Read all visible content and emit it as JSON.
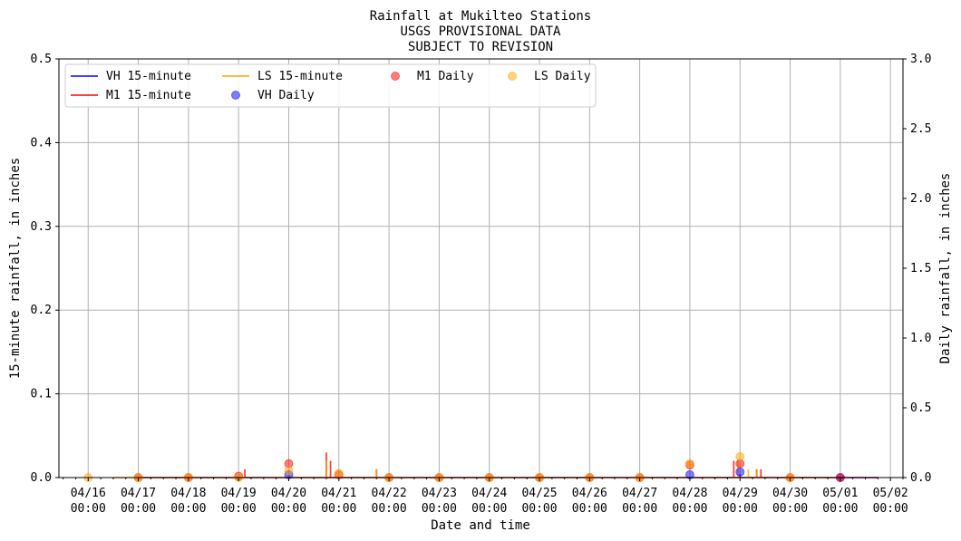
{
  "chart_data": {
    "type": "line",
    "title": [
      "Rainfall at Mukilteo Stations",
      "USGS PROVISIONAL DATA",
      "SUBJECT TO REVISION"
    ],
    "xlabel": "Date and time",
    "ylabel_left": "15-minute rainfall, in inches",
    "ylabel_right": "Daily rainfall, in inches",
    "ylim_left": [
      0,
      0.5
    ],
    "ylim_right": [
      0,
      3.0
    ],
    "yticks_left": [
      "0.0",
      "0.1",
      "0.2",
      "0.3",
      "0.4",
      "0.5"
    ],
    "yticks_right": [
      "0.0",
      "0.5",
      "1.0",
      "1.5",
      "2.0",
      "2.5",
      "3.0"
    ],
    "xticks": [
      [
        "04/16",
        "00:00"
      ],
      [
        "04/17",
        "00:00"
      ],
      [
        "04/18",
        "00:00"
      ],
      [
        "04/19",
        "00:00"
      ],
      [
        "04/20",
        "00:00"
      ],
      [
        "04/21",
        "00:00"
      ],
      [
        "04/22",
        "00:00"
      ],
      [
        "04/23",
        "00:00"
      ],
      [
        "04/24",
        "00:00"
      ],
      [
        "04/25",
        "00:00"
      ],
      [
        "04/26",
        "00:00"
      ],
      [
        "04/27",
        "00:00"
      ],
      [
        "04/28",
        "00:00"
      ],
      [
        "04/29",
        "00:00"
      ],
      [
        "04/30",
        "00:00"
      ],
      [
        "05/01",
        "00:00"
      ],
      [
        "05/02",
        "00:00"
      ]
    ],
    "xrange": [
      "04/15 10:00",
      "05/02 06:00"
    ],
    "grid": true,
    "legend_position": "top-left",
    "series": [
      {
        "name": "VH 15-minute",
        "kind": "line",
        "color": "#0000ff",
        "range": [
          "04/17 00:00",
          "05/01 18:00"
        ],
        "spikes": [
          [
            "04/20 00:00",
            0.003
          ],
          [
            "04/29 00:00",
            0.004
          ]
        ]
      },
      {
        "name": "M1 15-minute",
        "kind": "line",
        "color": "#ff0000",
        "range": [
          "04/17 00:00",
          "05/01 18:00"
        ],
        "spikes": [
          [
            "04/19 03:00",
            0.01
          ],
          [
            "04/20 18:00",
            0.03
          ],
          [
            "04/20 20:00",
            0.02
          ],
          [
            "04/21 18:00",
            0.01
          ],
          [
            "04/28 21:00",
            0.02
          ],
          [
            "04/29 08:00",
            0.01
          ],
          [
            "04/29 10:00",
            0.01
          ]
        ]
      },
      {
        "name": "LS 15-minute",
        "kind": "line",
        "color": "#ffa500",
        "range": [
          "04/16 12:00",
          "05/01 00:00"
        ],
        "spikes": [
          [
            "04/20 00:00",
            0.005
          ],
          [
            "04/20 18:00",
            0.02
          ],
          [
            "04/21 18:00",
            0.01
          ],
          [
            "04/28 23:00",
            0.02
          ],
          [
            "04/29 04:00",
            0.01
          ],
          [
            "04/29 08:00",
            0.01
          ]
        ]
      },
      {
        "name": "VH Daily",
        "kind": "scatter",
        "color": "#0000ff",
        "points": [
          [
            "04/20 00:00",
            0.02
          ],
          [
            "04/28 00:00",
            0.02
          ],
          [
            "04/29 00:00",
            0.04
          ],
          [
            "05/01 00:00",
            0.0
          ]
        ]
      },
      {
        "name": "M1 Daily",
        "kind": "scatter",
        "color": "#ff0000",
        "points": [
          [
            "04/17 00:00",
            0.0
          ],
          [
            "04/18 00:00",
            0.0
          ],
          [
            "04/19 00:00",
            0.01
          ],
          [
            "04/20 00:00",
            0.1
          ],
          [
            "04/21 00:00",
            0.02
          ],
          [
            "04/22 00:00",
            0.0
          ],
          [
            "04/23 00:00",
            0.0
          ],
          [
            "04/24 00:00",
            0.0
          ],
          [
            "04/25 00:00",
            0.0
          ],
          [
            "04/26 00:00",
            0.0
          ],
          [
            "04/27 00:00",
            0.0
          ],
          [
            "04/28 00:00",
            0.09
          ],
          [
            "04/29 00:00",
            0.1
          ],
          [
            "04/30 00:00",
            0.0
          ],
          [
            "05/01 00:00",
            0.0
          ]
        ]
      },
      {
        "name": "LS Daily",
        "kind": "scatter",
        "color": "#ffa500",
        "points": [
          [
            "04/16 00:00",
            0.0
          ],
          [
            "04/17 00:00",
            0.0
          ],
          [
            "04/18 00:00",
            0.0
          ],
          [
            "04/19 00:00",
            0.0
          ],
          [
            "04/20 00:00",
            0.05
          ],
          [
            "04/21 00:00",
            0.03
          ],
          [
            "04/22 00:00",
            0.0
          ],
          [
            "04/23 00:00",
            0.0
          ],
          [
            "04/24 00:00",
            0.0
          ],
          [
            "04/25 00:00",
            0.0
          ],
          [
            "04/26 00:00",
            0.0
          ],
          [
            "04/27 00:00",
            0.0
          ],
          [
            "04/28 00:00",
            0.1
          ],
          [
            "04/29 00:00",
            0.15
          ],
          [
            "04/30 00:00",
            0.0
          ]
        ]
      }
    ]
  }
}
